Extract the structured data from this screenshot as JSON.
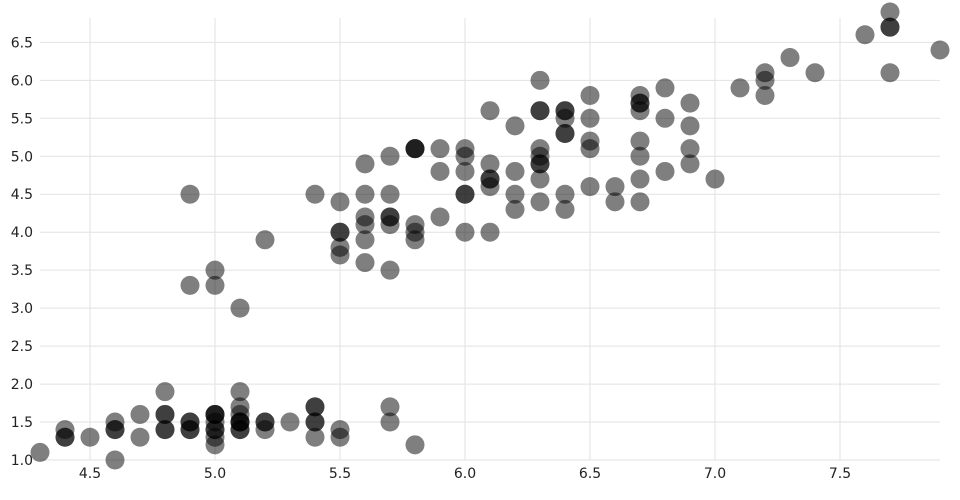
{
  "chart_data": {
    "type": "scatter",
    "title": "",
    "xlabel": "",
    "ylabel": "",
    "xlim": [
      4.3,
      7.9
    ],
    "ylim": [
      1.0,
      6.9
    ],
    "grid": true,
    "x_ticks": [
      "4.5",
      "5.0",
      "5.5",
      "6.0",
      "6.5",
      "7.0",
      "7.5"
    ],
    "y_ticks": [
      "1.0",
      "1.5",
      "2.0",
      "2.5",
      "3.0",
      "3.5",
      "4.0",
      "4.5",
      "5.0",
      "5.5",
      "6.0",
      "6.5"
    ],
    "point_color": "#000000",
    "point_opacity": 0.5,
    "series": [
      {
        "values": [
          [
            5.1,
            1.4
          ],
          [
            4.9,
            1.4
          ],
          [
            4.7,
            1.3
          ],
          [
            4.6,
            1.5
          ],
          [
            5.0,
            1.4
          ],
          [
            5.4,
            1.7
          ],
          [
            4.6,
            1.4
          ],
          [
            5.0,
            1.5
          ],
          [
            4.4,
            1.4
          ],
          [
            4.9,
            1.5
          ],
          [
            5.4,
            1.5
          ],
          [
            4.8,
            1.6
          ],
          [
            4.8,
            1.4
          ],
          [
            4.3,
            1.1
          ],
          [
            5.8,
            1.2
          ],
          [
            5.7,
            1.5
          ],
          [
            5.4,
            1.3
          ],
          [
            5.1,
            1.4
          ],
          [
            5.7,
            1.7
          ],
          [
            5.1,
            1.5
          ],
          [
            5.4,
            1.7
          ],
          [
            5.1,
            1.5
          ],
          [
            4.6,
            1.0
          ],
          [
            5.1,
            1.7
          ],
          [
            4.8,
            1.9
          ],
          [
            5.0,
            1.6
          ],
          [
            5.0,
            1.6
          ],
          [
            5.2,
            1.5
          ],
          [
            5.2,
            1.4
          ],
          [
            4.7,
            1.6
          ],
          [
            4.8,
            1.6
          ],
          [
            5.4,
            1.5
          ],
          [
            5.2,
            1.5
          ],
          [
            5.5,
            1.4
          ],
          [
            4.9,
            1.5
          ],
          [
            5.0,
            1.2
          ],
          [
            5.5,
            1.3
          ],
          [
            4.9,
            1.4
          ],
          [
            4.4,
            1.3
          ],
          [
            5.1,
            1.5
          ],
          [
            5.0,
            1.3
          ],
          [
            4.5,
            1.3
          ],
          [
            4.4,
            1.3
          ],
          [
            5.0,
            1.6
          ],
          [
            5.1,
            1.9
          ],
          [
            4.8,
            1.4
          ],
          [
            5.1,
            1.6
          ],
          [
            4.6,
            1.4
          ],
          [
            5.3,
            1.5
          ],
          [
            5.0,
            1.4
          ],
          [
            7.0,
            4.7
          ],
          [
            6.4,
            4.5
          ],
          [
            6.9,
            4.9
          ],
          [
            5.5,
            4.0
          ],
          [
            6.5,
            4.6
          ],
          [
            5.7,
            4.5
          ],
          [
            6.3,
            4.7
          ],
          [
            4.9,
            3.3
          ],
          [
            6.6,
            4.6
          ],
          [
            5.2,
            3.9
          ],
          [
            5.0,
            3.5
          ],
          [
            5.9,
            4.2
          ],
          [
            6.0,
            4.0
          ],
          [
            6.1,
            4.7
          ],
          [
            5.6,
            3.6
          ],
          [
            6.7,
            4.4
          ],
          [
            5.6,
            4.5
          ],
          [
            5.8,
            4.1
          ],
          [
            6.2,
            4.5
          ],
          [
            5.6,
            3.9
          ],
          [
            5.9,
            4.8
          ],
          [
            6.1,
            4.0
          ],
          [
            6.3,
            4.9
          ],
          [
            6.1,
            4.7
          ],
          [
            6.4,
            4.3
          ],
          [
            6.6,
            4.4
          ],
          [
            6.8,
            4.8
          ],
          [
            6.7,
            5.0
          ],
          [
            6.0,
            4.5
          ],
          [
            5.7,
            3.5
          ],
          [
            5.5,
            3.8
          ],
          [
            5.5,
            3.7
          ],
          [
            5.8,
            3.9
          ],
          [
            6.0,
            5.1
          ],
          [
            5.4,
            4.5
          ],
          [
            6.0,
            4.5
          ],
          [
            6.7,
            4.7
          ],
          [
            6.3,
            4.4
          ],
          [
            5.6,
            4.1
          ],
          [
            5.5,
            4.0
          ],
          [
            5.5,
            4.4
          ],
          [
            6.1,
            4.6
          ],
          [
            5.8,
            4.0
          ],
          [
            5.0,
            3.3
          ],
          [
            5.6,
            4.2
          ],
          [
            5.7,
            4.2
          ],
          [
            5.7,
            4.2
          ],
          [
            6.2,
            4.3
          ],
          [
            5.1,
            3.0
          ],
          [
            5.7,
            4.1
          ],
          [
            6.3,
            6.0
          ],
          [
            5.8,
            5.1
          ],
          [
            7.1,
            5.9
          ],
          [
            6.3,
            5.6
          ],
          [
            6.5,
            5.8
          ],
          [
            7.6,
            6.6
          ],
          [
            4.9,
            4.5
          ],
          [
            7.3,
            6.3
          ],
          [
            6.7,
            5.8
          ],
          [
            7.2,
            6.1
          ],
          [
            6.5,
            5.1
          ],
          [
            6.4,
            5.3
          ],
          [
            6.8,
            5.5
          ],
          [
            5.7,
            5.0
          ],
          [
            5.8,
            5.1
          ],
          [
            6.4,
            5.3
          ],
          [
            6.5,
            5.5
          ],
          [
            7.7,
            6.7
          ],
          [
            7.7,
            6.9
          ],
          [
            6.0,
            5.0
          ],
          [
            6.9,
            5.7
          ],
          [
            5.6,
            4.9
          ],
          [
            7.7,
            6.7
          ],
          [
            6.3,
            4.9
          ],
          [
            6.7,
            5.7
          ],
          [
            7.2,
            6.0
          ],
          [
            6.2,
            4.8
          ],
          [
            6.1,
            4.9
          ],
          [
            6.4,
            5.6
          ],
          [
            7.2,
            5.8
          ],
          [
            7.4,
            6.1
          ],
          [
            7.9,
            6.4
          ],
          [
            6.4,
            5.6
          ],
          [
            6.3,
            5.1
          ],
          [
            6.1,
            5.6
          ],
          [
            7.7,
            6.1
          ],
          [
            6.3,
            5.6
          ],
          [
            6.4,
            5.5
          ],
          [
            6.0,
            4.8
          ],
          [
            6.9,
            5.4
          ],
          [
            6.7,
            5.6
          ],
          [
            6.9,
            5.1
          ],
          [
            5.8,
            5.1
          ],
          [
            6.8,
            5.9
          ],
          [
            6.7,
            5.7
          ],
          [
            6.7,
            5.2
          ],
          [
            6.3,
            5.0
          ],
          [
            6.5,
            5.2
          ],
          [
            6.2,
            5.4
          ],
          [
            5.9,
            5.1
          ]
        ]
      }
    ]
  }
}
